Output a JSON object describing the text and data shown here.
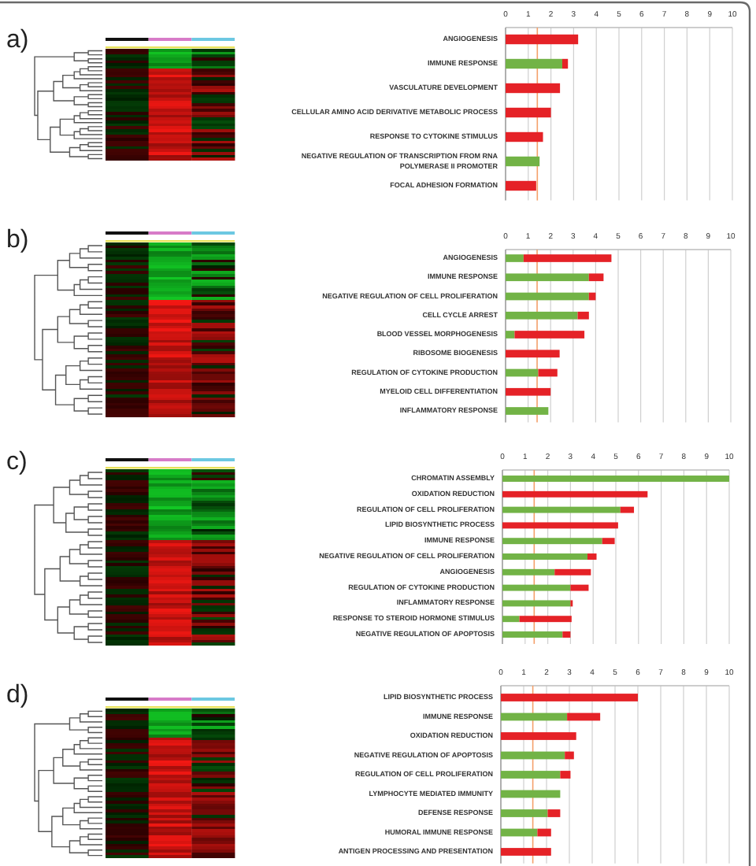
{
  "chart_data": [
    {
      "type": "bar",
      "annotations": [
        "a)"
      ],
      "orientation": "horizontal",
      "stacked": true,
      "categories": [
        "ANGIOGENESIS",
        "IMMUNE RESPONSE",
        "VASCULATURE DEVELOPMENT",
        "CELLULAR AMINO ACID DERIVATIVE METABOLIC PROCESS",
        "RESPONSE TO CYTOKINE STIMULUS",
        "NEGATIVE REGULATION OF TRANSCRIPTION FROM RNA POLYMERASE II PROMOTER",
        "FOCAL ADHESION FORMATION"
      ],
      "series": [
        {
          "color": "#72b346",
          "values": [
            null,
            2.5,
            null,
            null,
            null,
            1.5,
            null
          ]
        },
        {
          "color": "#e52227",
          "values": [
            3.2,
            0.25,
            2.4,
            2.0,
            1.65,
            null,
            1.35
          ]
        }
      ],
      "xlim": [
        0,
        10
      ],
      "xticks": [
        0,
        1,
        2,
        3,
        4,
        5,
        6,
        7,
        8,
        9,
        10
      ],
      "grid": "x",
      "ref_lines": [
        {
          "axis": "x",
          "value": 1.4,
          "color": "#f4a06a"
        }
      ]
    },
    {
      "type": "bar",
      "annotations": [
        "b)"
      ],
      "orientation": "horizontal",
      "stacked": true,
      "categories": [
        "ANGIOGENESIS",
        "IMMUNE RESPONSE",
        "NEGATIVE REGULATION OF CELL PROLIFERATION",
        "CELL CYCLE ARREST",
        "BLOOD VESSEL MORPHOGENESIS",
        "RIBOSOME BIOGENESIS",
        "REGULATION OF CYTOKINE PRODUCTION",
        "MYELOID CELL DIFFERENTIATION",
        "INFLAMMATORY RESPONSE"
      ],
      "series": [
        {
          "color": "#72b346",
          "values": [
            0.8,
            3.7,
            3.7,
            3.2,
            0.4,
            null,
            1.45,
            null,
            1.9
          ]
        },
        {
          "color": "#e52227",
          "values": [
            3.9,
            0.65,
            0.3,
            0.5,
            3.1,
            2.4,
            0.85,
            2.0,
            null
          ]
        }
      ],
      "xlim": [
        0,
        10
      ],
      "xticks": [
        0,
        1,
        2,
        3,
        4,
        5,
        6,
        7,
        8,
        9,
        10
      ],
      "grid": "x",
      "ref_lines": [
        {
          "axis": "x",
          "value": 1.4,
          "color": "#f4a06a"
        }
      ]
    },
    {
      "type": "bar",
      "annotations": [
        "c)"
      ],
      "orientation": "horizontal",
      "stacked": true,
      "categories": [
        "CHROMATIN ASSEMBLY",
        "OXIDATION REDUCTION",
        "REGULATION OF CELL PROLIFERATION",
        "LIPID BIOSYNTHETIC PROCESS",
        "IMMUNE RESPONSE",
        "NEGATIVE REGULATION OF CELL PROLIFERATION",
        "ANGIOGENESIS",
        "REGULATION OF CYTOKINE PRODUCTION",
        "INFLAMMATORY RESPONSE",
        "RESPONSE TO STEROID HORMONE STIMULUS",
        "NEGATIVE REGULATION OF APOPTOSIS"
      ],
      "series": [
        {
          "color": "#72b346",
          "values": [
            10,
            null,
            5.2,
            null,
            4.4,
            3.75,
            2.3,
            3.0,
            3.0,
            0.75,
            2.65
          ]
        },
        {
          "color": "#e52227",
          "values": [
            null,
            6.4,
            0.6,
            5.1,
            0.55,
            0.4,
            1.6,
            0.8,
            0.1,
            2.3,
            0.35
          ]
        }
      ],
      "xlim": [
        0,
        10
      ],
      "xticks": [
        0,
        1,
        2,
        3,
        4,
        5,
        6,
        7,
        8,
        9,
        10
      ],
      "grid": "x",
      "ref_lines": [
        {
          "axis": "x",
          "value": 1.4,
          "color": "#f4a06a"
        }
      ]
    },
    {
      "type": "bar",
      "annotations": [
        "d)"
      ],
      "orientation": "horizontal",
      "stacked": true,
      "categories": [
        "LIPID BIOSYNTHETIC PROCESS",
        "IMMUNE RESPONSE",
        "OXIDATION REDUCTION",
        "NEGATIVE REGULATION OF APOPTOSIS",
        "REGULATION OF CELL PROLIFERATION",
        "LYMPHOCYTE MEDIATED IMMUNITY",
        "DEFENSE RESPONSE",
        "HUMORAL IMMUNE RESPONSE",
        "ANTIGEN PROCESSING AND PRESENTATION"
      ],
      "series": [
        {
          "color": "#72b346",
          "values": [
            null,
            2.9,
            null,
            2.8,
            2.6,
            2.6,
            2.05,
            1.6,
            null
          ]
        },
        {
          "color": "#e52227",
          "values": [
            6.0,
            1.45,
            3.3,
            0.4,
            0.45,
            null,
            0.55,
            0.6,
            2.2
          ]
        }
      ],
      "xlim": [
        0,
        10
      ],
      "xticks": [
        0,
        1,
        2,
        3,
        4,
        5,
        6,
        7,
        8,
        9,
        10
      ],
      "grid": "x",
      "ref_lines": [
        {
          "axis": "x",
          "value": 1.4,
          "color": "#f4a06a"
        }
      ]
    }
  ]
}
